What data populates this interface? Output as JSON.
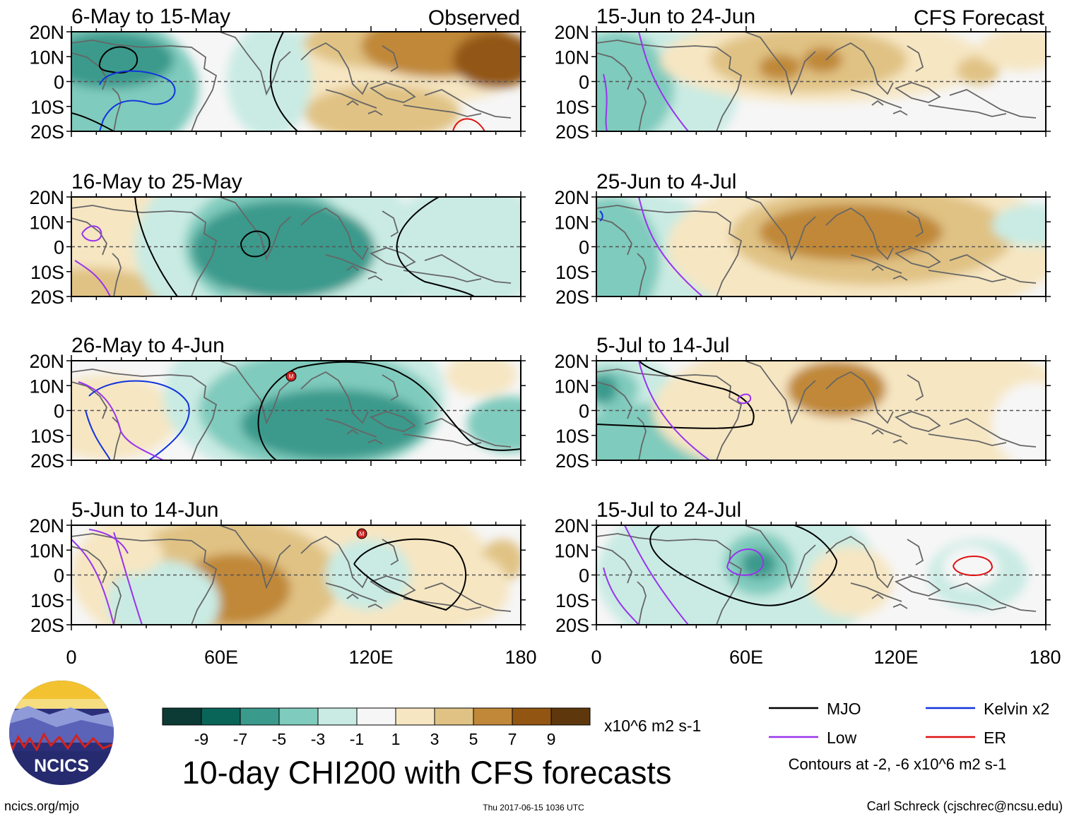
{
  "header": {
    "observed_label": "Observed",
    "forecast_label": "CFS Forecast"
  },
  "observed_panels": [
    {
      "title": "6-May to 15-May"
    },
    {
      "title": "16-May to 25-May"
    },
    {
      "title": "26-May to 4-Jun"
    },
    {
      "title": "5-Jun to 14-Jun"
    }
  ],
  "forecast_panels": [
    {
      "title": "15-Jun to 24-Jun"
    },
    {
      "title": "25-Jun to 4-Jul"
    },
    {
      "title": "5-Jul to 14-Jul"
    },
    {
      "title": "15-Jul to 24-Jul"
    }
  ],
  "axes": {
    "lat_labels": [
      "20N",
      "10N",
      "0",
      "10S",
      "20S"
    ],
    "lon_labels": [
      "0",
      "60E",
      "120E",
      "180"
    ]
  },
  "colorbar": {
    "labels": [
      "-9",
      "-7",
      "-5",
      "-3",
      "-1",
      "1",
      "3",
      "5",
      "7",
      "9"
    ],
    "units": "x10^6 m2 s-1",
    "colors": [
      "#0b3b34",
      "#0a6559",
      "#3a9a8c",
      "#7fcbbd",
      "#c9ebe3",
      "#f6f6f6",
      "#f6e6c2",
      "#e0c284",
      "#c08838",
      "#925612",
      "#5e380c"
    ]
  },
  "legend": {
    "items": [
      {
        "label": "MJO",
        "color": "#000000"
      },
      {
        "label": "Kelvin x2",
        "color": "#1133dd"
      },
      {
        "label": "Low",
        "color": "#9933ee"
      },
      {
        "label": "ER",
        "color": "#dd1111"
      }
    ],
    "note": "Contours at -2, -6 x10^6 m2 s-1"
  },
  "logo": {
    "text": "NCICS"
  },
  "footer": {
    "title": "10-day CHI200 with CFS forecasts",
    "url": "ncics.org/mjo",
    "timestamp": "Thu 2017-06-15 1036 UTC",
    "author": "Carl Schreck (cjschrec@ncsu.edu)"
  }
}
